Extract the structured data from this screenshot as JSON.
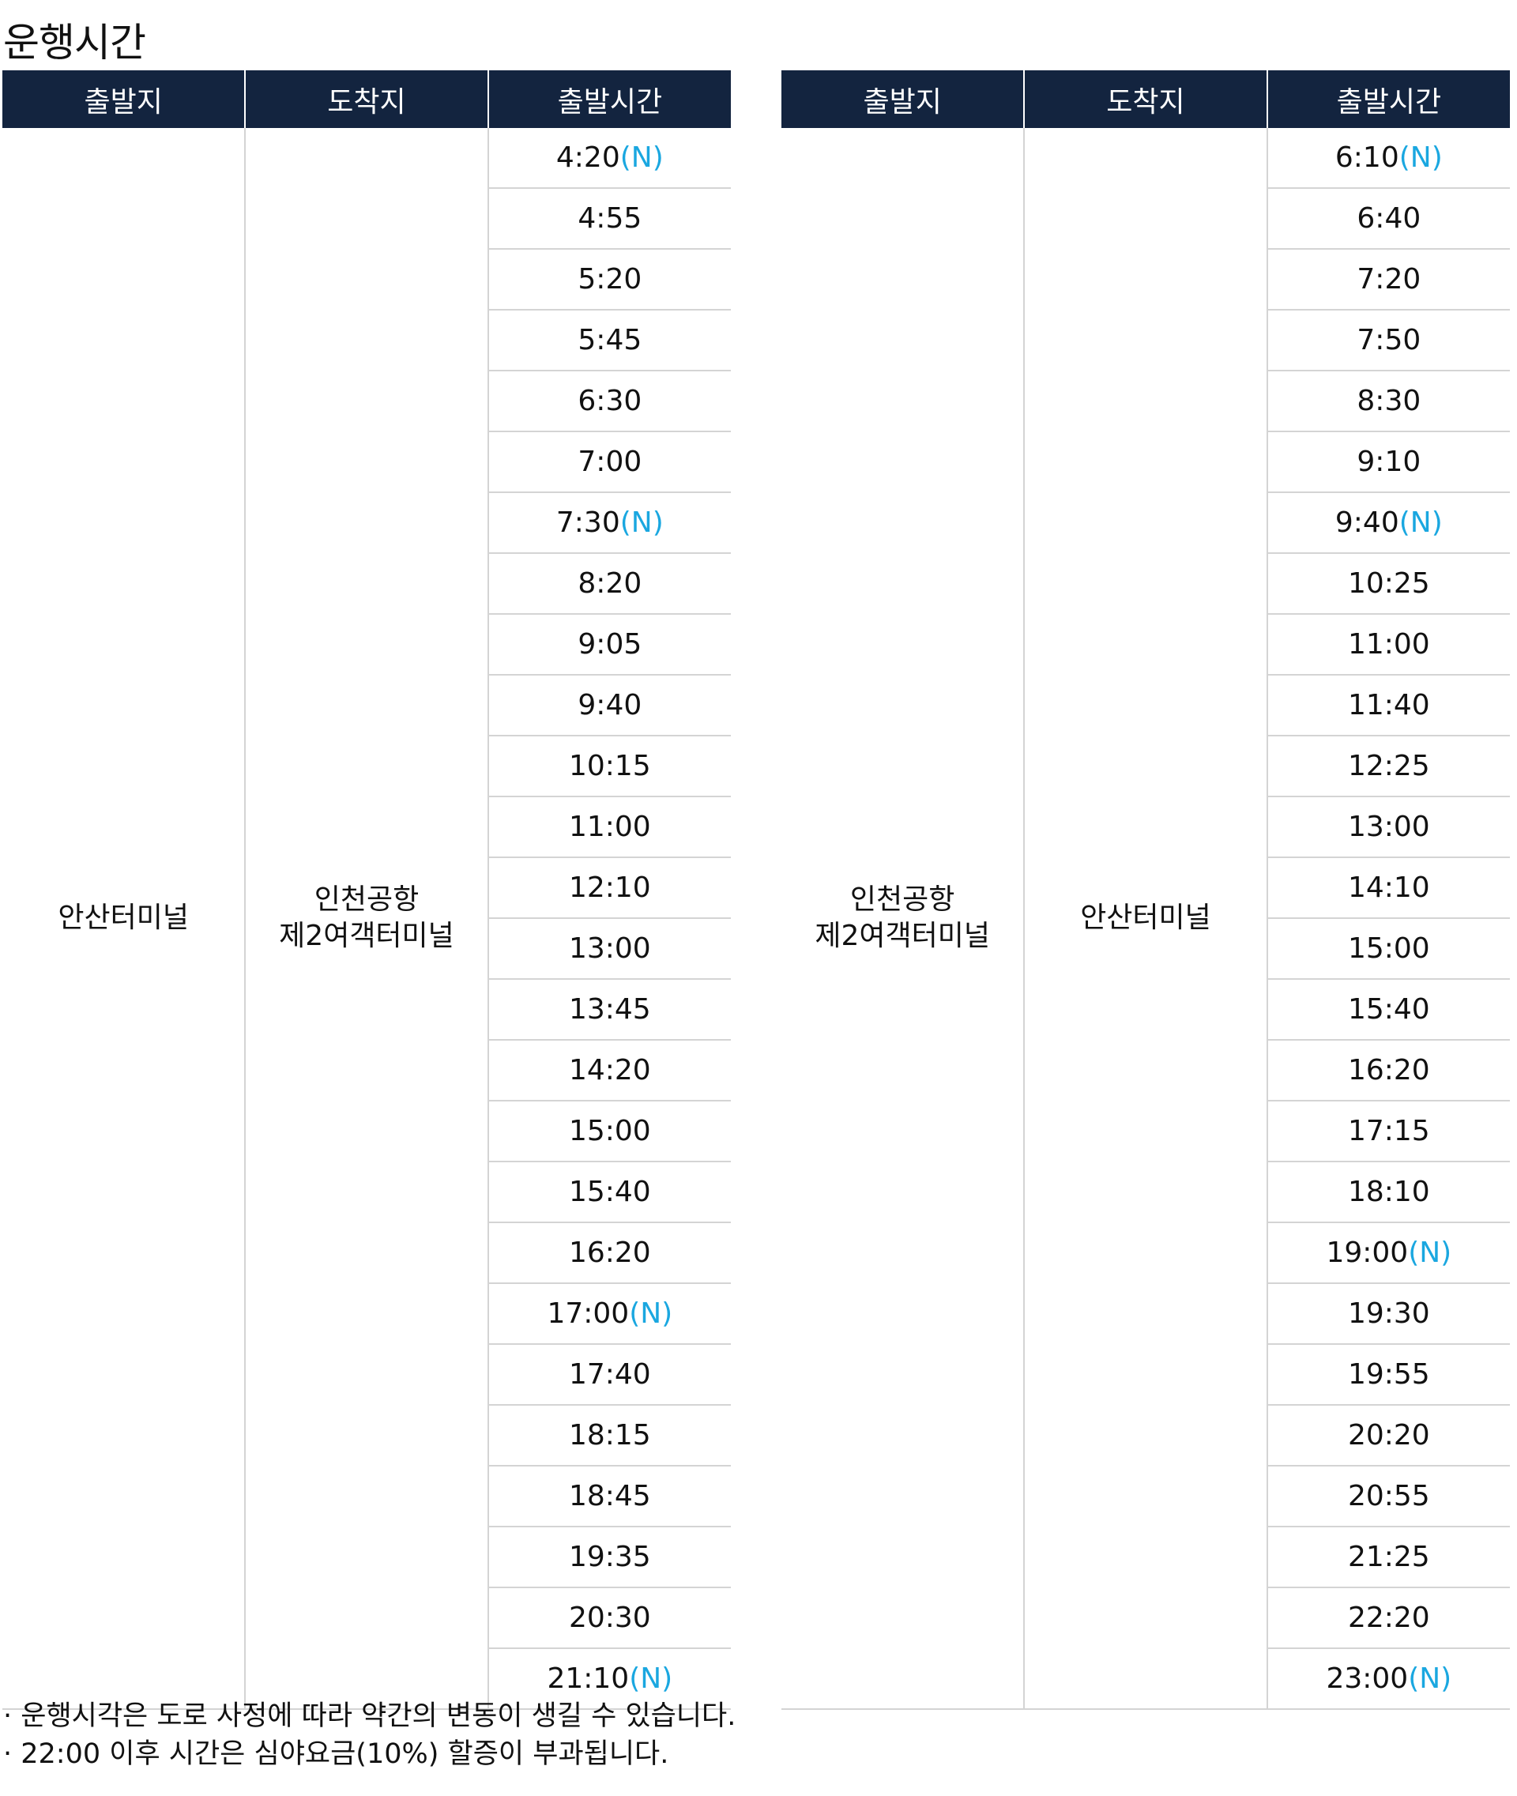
{
  "title": "운행시간",
  "tables": [
    {
      "headers": [
        "출발지",
        "도착지",
        "출발시간"
      ],
      "origin": "안산터미널",
      "destination": "인천공항\n제2여객터미널",
      "times": [
        {
          "time": "4:20",
          "note": "(N)"
        },
        {
          "time": "4:55"
        },
        {
          "time": "5:20"
        },
        {
          "time": "5:45"
        },
        {
          "time": "6:30"
        },
        {
          "time": "7:00"
        },
        {
          "time": "7:30",
          "note": "(N)"
        },
        {
          "time": "8:20"
        },
        {
          "time": "9:05"
        },
        {
          "time": "9:40"
        },
        {
          "time": "10:15"
        },
        {
          "time": "11:00"
        },
        {
          "time": "12:10"
        },
        {
          "time": "13:00"
        },
        {
          "time": "13:45"
        },
        {
          "time": "14:20"
        },
        {
          "time": "15:00"
        },
        {
          "time": "15:40"
        },
        {
          "time": "16:20"
        },
        {
          "time": "17:00",
          "note": "(N)"
        },
        {
          "time": "17:40"
        },
        {
          "time": "18:15"
        },
        {
          "time": "18:45"
        },
        {
          "time": "19:35"
        },
        {
          "time": "20:30"
        },
        {
          "time": "21:10",
          "note": "(N)"
        }
      ]
    },
    {
      "headers": [
        "출발지",
        "도착지",
        "출발시간"
      ],
      "origin": "인천공항\n제2여객터미널",
      "destination": "안산터미널",
      "times": [
        {
          "time": "6:10",
          "note": "(N)"
        },
        {
          "time": "6:40"
        },
        {
          "time": "7:20"
        },
        {
          "time": "7:50"
        },
        {
          "time": "8:30"
        },
        {
          "time": "9:10"
        },
        {
          "time": "9:40",
          "note": "(N)"
        },
        {
          "time": "10:25"
        },
        {
          "time": "11:00"
        },
        {
          "time": "11:40"
        },
        {
          "time": "12:25"
        },
        {
          "time": "13:00"
        },
        {
          "time": "14:10"
        },
        {
          "time": "15:00"
        },
        {
          "time": "15:40"
        },
        {
          "time": "16:20"
        },
        {
          "time": "17:15"
        },
        {
          "time": "18:10"
        },
        {
          "time": "19:00",
          "note": "(N)"
        },
        {
          "time": "19:30"
        },
        {
          "time": "19:55"
        },
        {
          "time": "20:20"
        },
        {
          "time": "20:55"
        },
        {
          "time": "21:25"
        },
        {
          "time": "22:20"
        },
        {
          "time": "23:00",
          "note": "(N)"
        }
      ]
    }
  ],
  "notes": [
    "· 운행시각은 도로 사정에 따라 약간의 변동이 생길 수 있습니다.",
    "· 22:00 이후 시간은 심야요금(10%) 할증이 부과됩니다."
  ]
}
